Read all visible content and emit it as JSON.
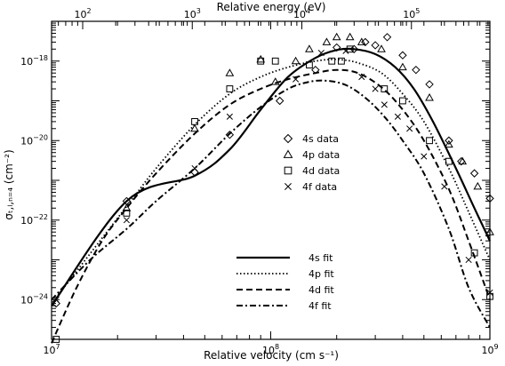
{
  "chart_data": {
    "type": "scatter",
    "title": "",
    "xlabel": "Relative velocity (cm s⁻¹)",
    "x2label": "Relative energy (eV)",
    "ylabel": "σₜ,ₗ,ₙ₌₄ (cm⁻²)",
    "x_scale": "log",
    "y_scale": "log",
    "xlim": [
      10000000.0,
      1000000000.0
    ],
    "ylim": [
      1e-25,
      1e-17
    ],
    "x2lim": [
      52,
      520000
    ],
    "x_ticks": [
      {
        "value": 10000000.0,
        "label": "10",
        "exp": "7"
      },
      {
        "value": 100000000.0,
        "label": "10",
        "exp": "8"
      },
      {
        "value": 1000000000.0,
        "label": "10",
        "exp": "9"
      }
    ],
    "x2_ticks": [
      {
        "value": 100,
        "label": "10",
        "exp": "2"
      },
      {
        "value": 1000,
        "label": "10",
        "exp": "3"
      },
      {
        "value": 10000,
        "label": "10",
        "exp": "4"
      },
      {
        "value": 100000,
        "label": "10",
        "exp": "5"
      }
    ],
    "y_ticks": [
      {
        "value": 1e-24,
        "label": "10",
        "exp": "−24"
      },
      {
        "value": 1e-22,
        "label": "10",
        "exp": "−22"
      },
      {
        "value": 1e-20,
        "label": "10",
        "exp": "−20"
      },
      {
        "value": 1e-18,
        "label": "10",
        "exp": "−18"
      }
    ],
    "grid": false,
    "series": [
      {
        "name": "4s data",
        "kind": "points",
        "marker": "diamond",
        "color": "#000000",
        "x": [
          10500000.0,
          22000000.0,
          45000000.0,
          65000000.0,
          110000000.0,
          160000000.0,
          200000000.0,
          240000000.0,
          270000000.0,
          300000000.0,
          340000000.0,
          400000000.0,
          460000000.0,
          530000000.0,
          650000000.0,
          740000000.0,
          850000000.0,
          1000000000.0
        ],
        "y": [
          8e-25,
          3e-22,
          1.6e-21,
          1.4e-20,
          1e-19,
          6e-19,
          2.2e-18,
          2e-18,
          3e-18,
          2.5e-18,
          4e-18,
          1.4e-18,
          6e-19,
          2.6e-19,
          1e-20,
          3e-21,
          1.5e-21,
          3.5e-22
        ]
      },
      {
        "name": "4p data",
        "kind": "points",
        "marker": "triangle",
        "color": "#000000",
        "x": [
          22000000.0,
          45000000.0,
          65000000.0,
          90000000.0,
          105000000.0,
          130000000.0,
          150000000.0,
          180000000.0,
          200000000.0,
          230000000.0,
          260000000.0,
          320000000.0,
          400000000.0,
          530000000.0,
          650000000.0,
          750000000.0,
          880000000.0,
          1000000000.0
        ],
        "y": [
          2e-22,
          2e-20,
          5e-19,
          1.1e-18,
          3e-19,
          1e-18,
          2e-18,
          3e-18,
          4e-18,
          4e-18,
          3e-18,
          2e-18,
          7e-19,
          1.2e-19,
          8e-21,
          3e-21,
          7e-22,
          5e-23
        ]
      },
      {
        "name": "4d data",
        "kind": "points",
        "marker": "square",
        "color": "#000000",
        "x": [
          10500000.0,
          22000000.0,
          45000000.0,
          65000000.0,
          90000000.0,
          105000000.0,
          150000000.0,
          190000000.0,
          210000000.0,
          230000000.0,
          330000000.0,
          400000000.0,
          530000000.0,
          650000000.0,
          850000000.0,
          1000000000.0
        ],
        "y": [
          1e-25,
          1.5e-22,
          3e-20,
          2e-19,
          1e-18,
          1e-18,
          8e-19,
          1e-18,
          1e-18,
          2e-18,
          2e-19,
          1e-19,
          1e-20,
          3e-21,
          1.5e-23,
          1.2e-24
        ]
      },
      {
        "name": "4f data",
        "kind": "points",
        "marker": "cross",
        "color": "#000000",
        "x": [
          10500000.0,
          22000000.0,
          45000000.0,
          65000000.0,
          130000000.0,
          170000000.0,
          220000000.0,
          260000000.0,
          300000000.0,
          330000000.0,
          380000000.0,
          430000000.0,
          500000000.0,
          620000000.0,
          800000000.0,
          1000000000.0
        ],
        "y": [
          1e-24,
          1e-22,
          2e-21,
          4e-20,
          3.5e-19,
          1.6e-18,
          1.8e-18,
          4e-19,
          2e-19,
          8e-20,
          4e-20,
          2e-20,
          4e-21,
          7e-22,
          1e-23,
          1.5e-24
        ]
      },
      {
        "name": "4s fit",
        "kind": "line",
        "dash": "solid",
        "color": "#000000",
        "x": [
          10000000.0,
          22000000.0,
          45000000.0,
          65000000.0,
          90000000.0,
          120000000.0,
          160000000.0,
          200000000.0,
          240000000.0,
          300000000.0,
          370000000.0,
          450000000.0,
          550000000.0,
          700000000.0,
          850000000.0,
          1000000000.0
        ],
        "y": [
          7e-25,
          3e-22,
          1.3e-21,
          6e-21,
          6e-20,
          4e-19,
          1.2e-18,
          1.9e-18,
          2e-18,
          1.5e-18,
          7e-19,
          2e-19,
          3e-20,
          2e-21,
          2e-22,
          3e-23
        ]
      },
      {
        "name": "4p fit",
        "kind": "line",
        "dash": "dotted",
        "color": "#000000",
        "x": [
          10000000.0,
          22000000.0,
          30000000.0,
          45000000.0,
          65000000.0,
          90000000.0,
          120000000.0,
          160000000.0,
          200000000.0,
          250000000.0,
          320000000.0,
          400000000.0,
          500000000.0,
          650000000.0,
          800000000.0,
          1000000000.0
        ],
        "y": [
          8e-25,
          2.2e-22,
          2e-21,
          2.5e-20,
          1.5e-19,
          4e-19,
          7e-19,
          1e-18,
          1.1e-18,
          9e-19,
          5e-19,
          1.5e-19,
          3e-20,
          2e-21,
          1.6e-22,
          1e-23
        ]
      },
      {
        "name": "4d fit",
        "kind": "line",
        "dash": "dashed",
        "color": "#000000",
        "x": [
          10000000.0,
          13000000.0,
          17000000.0,
          22000000.0,
          30000000.0,
          45000000.0,
          65000000.0,
          90000000.0,
          120000000.0,
          160000000.0,
          200000000.0,
          250000000.0,
          320000000.0,
          400000000.0,
          500000000.0,
          650000000.0,
          800000000.0,
          1000000000.0
        ],
        "y": [
          8e-26,
          2e-24,
          3e-23,
          2e-22,
          1.5e-21,
          1.5e-20,
          8e-20,
          2e-19,
          3.5e-19,
          5e-19,
          6e-19,
          5e-19,
          2.2e-19,
          6e-20,
          1e-20,
          6e-22,
          3e-23,
          1e-24
        ]
      },
      {
        "name": "4f fit",
        "kind": "line",
        "dash": "dashdot",
        "color": "#000000",
        "x": [
          10000000.0,
          15000000.0,
          22000000.0,
          30000000.0,
          45000000.0,
          65000000.0,
          90000000.0,
          120000000.0,
          150000000.0,
          180000000.0,
          220000000.0,
          270000000.0,
          330000000.0,
          400000000.0,
          500000000.0,
          650000000.0,
          800000000.0,
          1000000000.0
        ],
        "y": [
          1e-24,
          1e-23,
          6e-23,
          3e-22,
          2e-21,
          1.5e-20,
          7e-20,
          2e-19,
          3e-19,
          3.2e-19,
          2.5e-19,
          1.2e-19,
          4e-20,
          1e-20,
          1.5e-21,
          6e-23,
          2e-24,
          2e-25
        ]
      }
    ]
  }
}
